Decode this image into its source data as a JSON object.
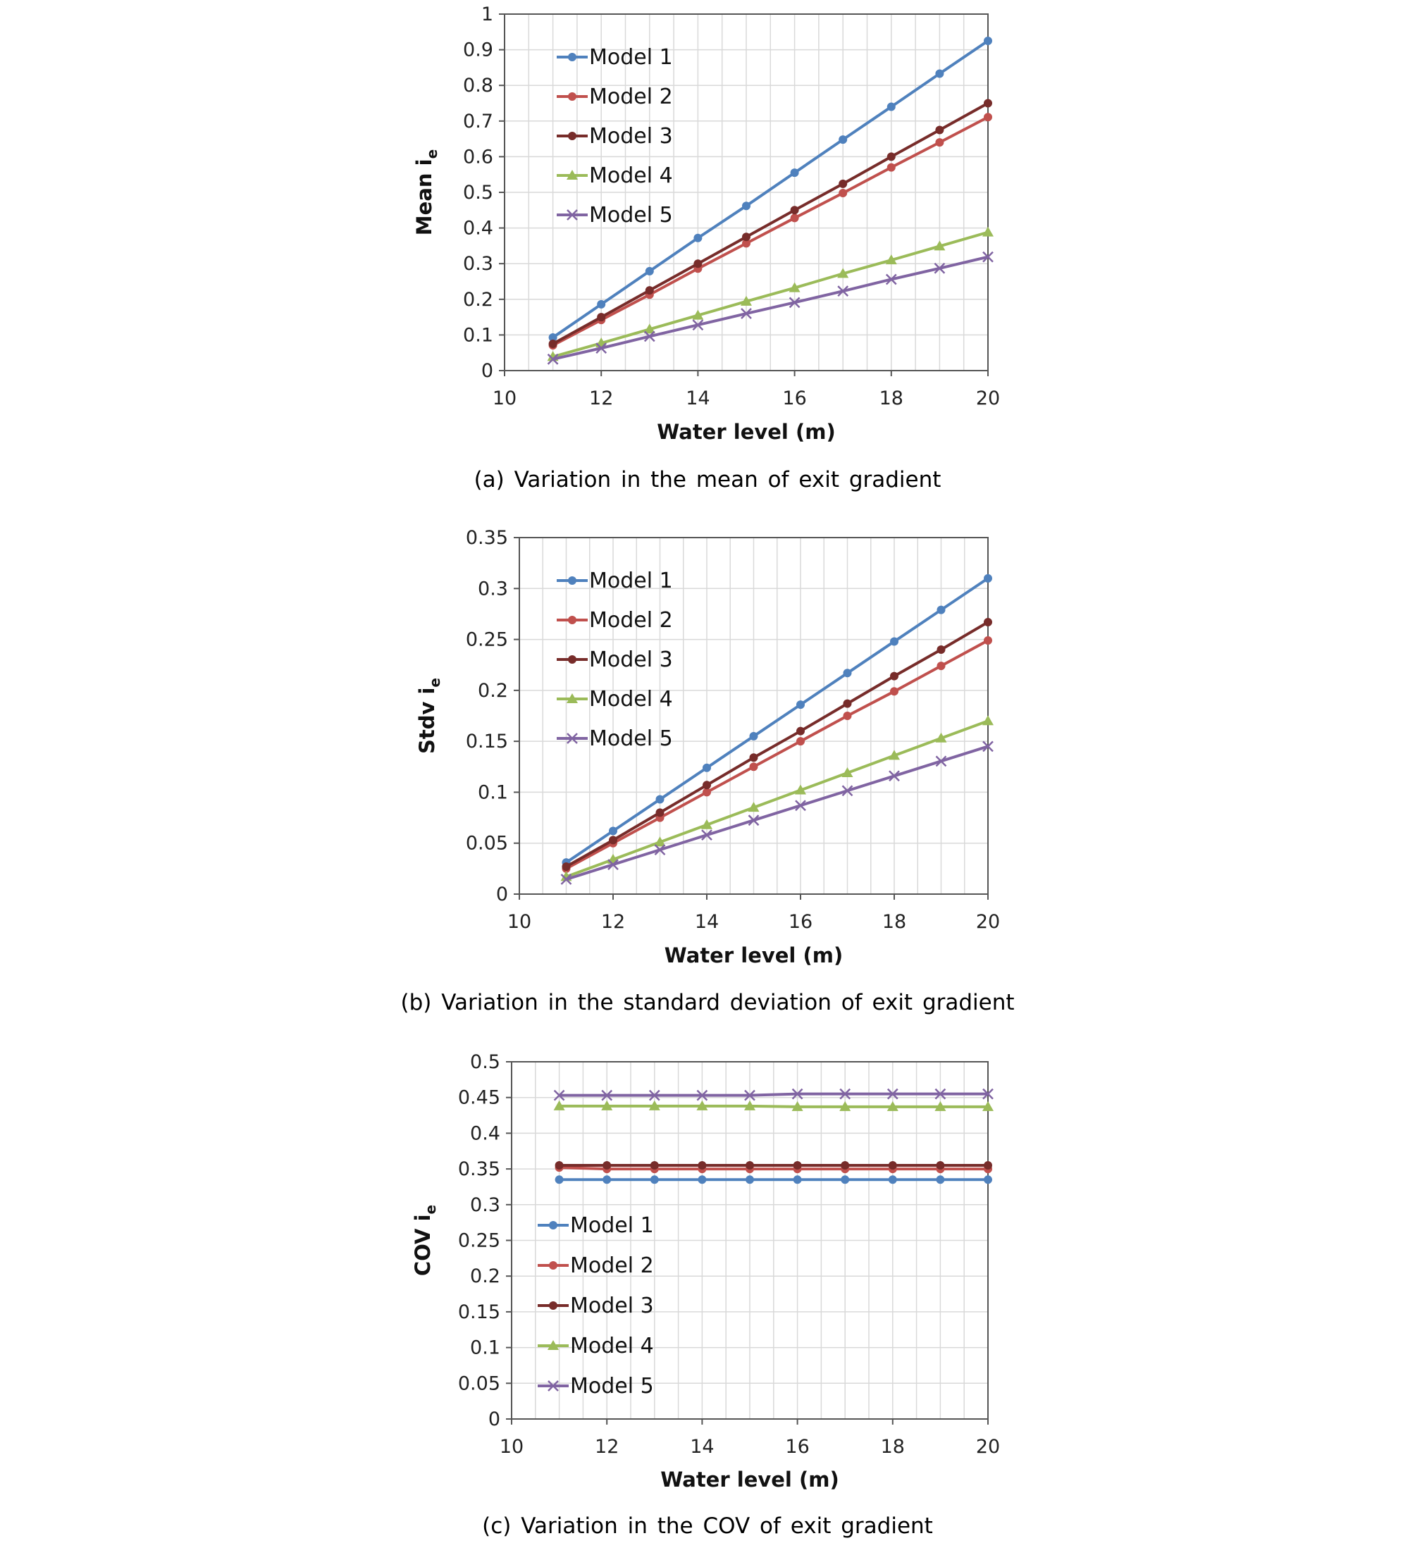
{
  "chart_data": [
    {
      "type": "line",
      "caption": "(a) Variation in the mean of exit gradient",
      "xlabel": "Water level (m)",
      "ylabel_main": "Mean i",
      "ylabel_sub": "e",
      "xlim": [
        10,
        20
      ],
      "ylim": [
        0,
        1
      ],
      "x_ticks": [
        "10",
        "12",
        "14",
        "16",
        "18",
        "20"
      ],
      "y_ticks": [
        "0",
        "0.1",
        "0.2",
        "0.3",
        "0.4",
        "0.5",
        "0.6",
        "0.7",
        "0.8",
        "0.9",
        "1"
      ],
      "legend_position": "top-left",
      "grid": true,
      "x": [
        11,
        12,
        13,
        14,
        15,
        16,
        17,
        18,
        19,
        20
      ],
      "series": [
        {
          "name": "Model 1",
          "color": "#4F81BD",
          "marker": "circle",
          "values": [
            0.093,
            0.186,
            0.279,
            0.372,
            0.462,
            0.555,
            0.648,
            0.74,
            0.833,
            0.925
          ]
        },
        {
          "name": "Model 2",
          "color": "#C0504D",
          "marker": "circle",
          "values": [
            0.071,
            0.142,
            0.213,
            0.286,
            0.357,
            0.428,
            0.498,
            0.57,
            0.64,
            0.711
          ]
        },
        {
          "name": "Model 3",
          "color": "#772C2A",
          "marker": "circle",
          "values": [
            0.075,
            0.15,
            0.225,
            0.3,
            0.375,
            0.45,
            0.524,
            0.6,
            0.675,
            0.75
          ]
        },
        {
          "name": "Model 4",
          "color": "#9BBB59",
          "marker": "triangle",
          "values": [
            0.039,
            0.077,
            0.116,
            0.155,
            0.194,
            0.232,
            0.272,
            0.31,
            0.349,
            0.388
          ]
        },
        {
          "name": "Model 5",
          "color": "#8064A2",
          "marker": "x",
          "values": [
            0.032,
            0.063,
            0.096,
            0.128,
            0.16,
            0.191,
            0.223,
            0.256,
            0.287,
            0.319
          ]
        }
      ]
    },
    {
      "type": "line",
      "caption": "(b) Variation in the standard deviation of exit gradient",
      "xlabel": "Water level (m)",
      "ylabel_main": "Stdv i",
      "ylabel_sub": "e",
      "xlim": [
        10,
        20
      ],
      "ylim": [
        0,
        0.35
      ],
      "x_ticks": [
        "10",
        "12",
        "14",
        "16",
        "18",
        "20"
      ],
      "y_ticks": [
        "0",
        "0.05",
        "0.1",
        "0.15",
        "0.2",
        "0.25",
        "0.3",
        "0.35"
      ],
      "legend_position": "top-left",
      "grid": true,
      "x": [
        11,
        12,
        13,
        14,
        15,
        16,
        17,
        18,
        19,
        20
      ],
      "series": [
        {
          "name": "Model 1",
          "color": "#4F81BD",
          "marker": "circle",
          "values": [
            0.031,
            0.062,
            0.093,
            0.124,
            0.155,
            0.186,
            0.217,
            0.248,
            0.279,
            0.31
          ]
        },
        {
          "name": "Model 2",
          "color": "#C0504D",
          "marker": "circle",
          "values": [
            0.025,
            0.05,
            0.075,
            0.1,
            0.125,
            0.15,
            0.175,
            0.199,
            0.224,
            0.249
          ]
        },
        {
          "name": "Model 3",
          "color": "#772C2A",
          "marker": "circle",
          "values": [
            0.027,
            0.053,
            0.08,
            0.107,
            0.134,
            0.16,
            0.187,
            0.214,
            0.24,
            0.267
          ]
        },
        {
          "name": "Model 4",
          "color": "#9BBB59",
          "marker": "triangle",
          "values": [
            0.017,
            0.034,
            0.051,
            0.068,
            0.085,
            0.102,
            0.119,
            0.136,
            0.153,
            0.17
          ]
        },
        {
          "name": "Model 5",
          "color": "#8064A2",
          "marker": "x",
          "values": [
            0.0145,
            0.029,
            0.0435,
            0.058,
            0.0725,
            0.087,
            0.1015,
            0.116,
            0.1305,
            0.145
          ]
        }
      ]
    },
    {
      "type": "line",
      "caption": "(c) Variation in the COV of exit gradient",
      "xlabel": "Water level (m)",
      "ylabel_main": "COV i",
      "ylabel_sub": "e",
      "xlim": [
        10,
        20
      ],
      "ylim": [
        0,
        0.5
      ],
      "x_ticks": [
        "10",
        "12",
        "14",
        "16",
        "18",
        "20"
      ],
      "y_ticks": [
        "0",
        "0.05",
        "0.1",
        "0.15",
        "0.2",
        "0.25",
        "0.3",
        "0.35",
        "0.4",
        "0.45",
        "0.5"
      ],
      "legend_position": "bottom-left",
      "grid": true,
      "x": [
        11,
        12,
        13,
        14,
        15,
        16,
        17,
        18,
        19,
        20
      ],
      "series": [
        {
          "name": "Model 1",
          "color": "#4F81BD",
          "marker": "circle",
          "values": [
            0.335,
            0.335,
            0.335,
            0.335,
            0.335,
            0.335,
            0.335,
            0.335,
            0.335,
            0.335
          ]
        },
        {
          "name": "Model 2",
          "color": "#C0504D",
          "marker": "circle",
          "values": [
            0.352,
            0.35,
            0.35,
            0.35,
            0.35,
            0.35,
            0.35,
            0.35,
            0.35,
            0.35
          ]
        },
        {
          "name": "Model 3",
          "color": "#772C2A",
          "marker": "circle",
          "values": [
            0.355,
            0.355,
            0.355,
            0.355,
            0.355,
            0.355,
            0.355,
            0.355,
            0.355,
            0.355
          ]
        },
        {
          "name": "Model 4",
          "color": "#9BBB59",
          "marker": "triangle",
          "values": [
            0.438,
            0.438,
            0.438,
            0.438,
            0.438,
            0.437,
            0.437,
            0.437,
            0.437,
            0.437
          ]
        },
        {
          "name": "Model 5",
          "color": "#8064A2",
          "marker": "x",
          "values": [
            0.453,
            0.453,
            0.453,
            0.453,
            0.453,
            0.455,
            0.455,
            0.455,
            0.455,
            0.455
          ]
        }
      ]
    }
  ]
}
